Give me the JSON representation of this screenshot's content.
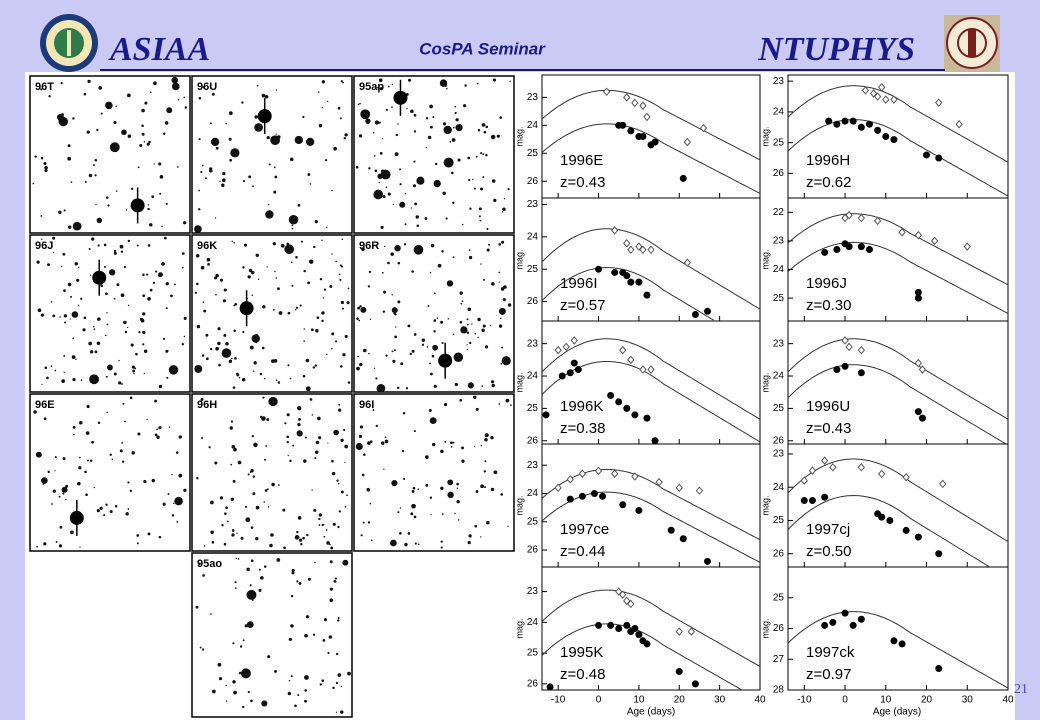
{
  "header": {
    "left_title": "ASIAA",
    "center_title": "CosPA Seminar",
    "right_title": "NTUPHYS"
  },
  "images": [
    {
      "label": "96T"
    },
    {
      "label": "96U"
    },
    {
      "label": "95ap"
    },
    {
      "label": "96J"
    },
    {
      "label": "96K"
    },
    {
      "label": "96R"
    },
    {
      "label": "96E"
    },
    {
      "label": "96H"
    },
    {
      "label": "96I"
    },
    {
      "label": "95ao"
    }
  ],
  "light_curves": {
    "x_label": "Age (days)",
    "y_label": "mag.",
    "xlim": [
      -14,
      40
    ],
    "xticks": [
      -10,
      0,
      10,
      20,
      30,
      40
    ],
    "panels": [
      {
        "name": "1996E",
        "redshift": "z=0.43",
        "ylim": [
          26.6,
          22.2
        ],
        "yticks": [
          23,
          24,
          25,
          26
        ],
        "open": [
          [
            2,
            22.8
          ],
          [
            7,
            23.0
          ],
          [
            9,
            23.2
          ],
          [
            11,
            23.3
          ],
          [
            12,
            23.7
          ],
          [
            22,
            24.6
          ],
          [
            26,
            24.1
          ]
        ],
        "filled": [
          [
            5,
            24.0
          ],
          [
            6,
            24.0
          ],
          [
            8,
            24.2
          ],
          [
            10,
            24.4
          ],
          [
            11,
            24.4
          ],
          [
            13,
            24.7
          ],
          [
            14,
            24.6
          ],
          [
            21,
            25.9
          ]
        ]
      },
      {
        "name": "1996H",
        "redshift": "z=0.62",
        "ylim": [
          26.8,
          22.8
        ],
        "yticks": [
          23,
          24,
          25,
          26
        ],
        "open": [
          [
            5,
            23.3
          ],
          [
            7,
            23.4
          ],
          [
            8,
            23.5
          ],
          [
            9,
            23.2
          ],
          [
            10,
            23.6
          ],
          [
            12,
            23.6
          ],
          [
            23,
            23.7
          ],
          [
            28,
            24.4
          ]
        ],
        "filled": [
          [
            -4,
            24.3
          ],
          [
            -2,
            24.4
          ],
          [
            0,
            24.3
          ],
          [
            2,
            24.3
          ],
          [
            4,
            24.5
          ],
          [
            6,
            24.4
          ],
          [
            8,
            24.6
          ],
          [
            10,
            24.8
          ],
          [
            12,
            24.9
          ],
          [
            20,
            25.4
          ],
          [
            23,
            25.5
          ]
        ]
      },
      {
        "name": "1996I",
        "redshift": "z=0.57",
        "ylim": [
          26.6,
          22.8
        ],
        "yticks": [
          23,
          24,
          25,
          26
        ],
        "open": [
          [
            4,
            23.8
          ],
          [
            7,
            24.2
          ],
          [
            8,
            24.4
          ],
          [
            10,
            24.3
          ],
          [
            11,
            24.4
          ],
          [
            13,
            24.4
          ],
          [
            22,
            24.8
          ]
        ],
        "filled": [
          [
            0,
            25.0
          ],
          [
            4,
            25.1
          ],
          [
            6,
            25.1
          ],
          [
            7,
            25.2
          ],
          [
            8,
            25.4
          ],
          [
            10,
            25.4
          ],
          [
            12,
            25.8
          ],
          [
            24,
            26.4
          ],
          [
            27,
            26.3
          ]
        ]
      },
      {
        "name": "1996J",
        "redshift": "z=0.30",
        "ylim": [
          25.8,
          21.5
        ],
        "yticks": [
          22,
          23,
          24,
          25
        ],
        "open": [
          [
            0,
            22.2
          ],
          [
            1,
            22.1
          ],
          [
            4,
            22.2
          ],
          [
            8,
            22.3
          ],
          [
            14,
            22.7
          ],
          [
            18,
            22.8
          ],
          [
            22,
            23.0
          ],
          [
            30,
            23.2
          ]
        ],
        "filled": [
          [
            -5,
            23.4
          ],
          [
            -2,
            23.3
          ],
          [
            0,
            23.1
          ],
          [
            1,
            23.2
          ],
          [
            4,
            23.2
          ],
          [
            6,
            23.3
          ],
          [
            18,
            24.8
          ],
          [
            18,
            25.0
          ]
        ]
      },
      {
        "name": "1996K",
        "redshift": "z=0.38",
        "ylim": [
          26.1,
          22.3
        ],
        "yticks": [
          23,
          24,
          25,
          26
        ],
        "open": [
          [
            -10,
            23.2
          ],
          [
            -8,
            23.1
          ],
          [
            -6,
            22.9
          ],
          [
            6,
            23.2
          ],
          [
            8,
            23.5
          ],
          [
            11,
            23.8
          ],
          [
            13,
            23.8
          ]
        ],
        "filled": [
          [
            -13,
            25.2
          ],
          [
            -9,
            24.0
          ],
          [
            -7,
            23.9
          ],
          [
            -6,
            23.6
          ],
          [
            -5,
            23.8
          ],
          [
            3,
            24.6
          ],
          [
            5,
            24.8
          ],
          [
            7,
            25.0
          ],
          [
            9,
            25.2
          ],
          [
            12,
            25.3
          ],
          [
            14,
            26.0
          ]
        ]
      },
      {
        "name": "1996U",
        "redshift": "z=0.43",
        "ylim": [
          26.1,
          22.3
        ],
        "yticks": [
          23,
          24,
          25,
          26
        ],
        "open": [
          [
            0,
            22.9
          ],
          [
            1,
            23.1
          ],
          [
            4,
            23.2
          ],
          [
            18,
            23.6
          ],
          [
            19,
            23.8
          ]
        ],
        "filled": [
          [
            -2,
            23.8
          ],
          [
            0,
            23.7
          ],
          [
            4,
            23.9
          ],
          [
            18,
            25.1
          ],
          [
            19,
            25.3
          ]
        ]
      },
      {
        "name": "1997ce",
        "redshift": "z=0.44",
        "ylim": [
          26.6,
          22.25
        ],
        "yticks": [
          23,
          24,
          25,
          26
        ],
        "open": [
          [
            -10,
            23.8
          ],
          [
            -7,
            23.5
          ],
          [
            -4,
            23.3
          ],
          [
            0,
            23.2
          ],
          [
            4,
            23.3
          ],
          [
            9,
            23.4
          ],
          [
            15,
            23.6
          ],
          [
            20,
            23.8
          ],
          [
            25,
            23.9
          ]
        ],
        "filled": [
          [
            -7,
            24.2
          ],
          [
            -4,
            24.1
          ],
          [
            -1,
            24.0
          ],
          [
            1,
            24.1
          ],
          [
            6,
            24.4
          ],
          [
            10,
            24.6
          ],
          [
            18,
            25.3
          ],
          [
            21,
            25.6
          ],
          [
            27,
            26.4
          ]
        ]
      },
      {
        "name": "1997cj",
        "redshift": "z=0.50",
        "ylim": [
          26.4,
          22.7
        ],
        "yticks": [
          23,
          24,
          25,
          26
        ],
        "open": [
          [
            -10,
            23.8
          ],
          [
            -8,
            23.5
          ],
          [
            -5,
            23.2
          ],
          [
            -3,
            23.4
          ],
          [
            4,
            23.4
          ],
          [
            9,
            23.6
          ],
          [
            15,
            23.7
          ],
          [
            24,
            23.9
          ]
        ],
        "filled": [
          [
            -10,
            24.4
          ],
          [
            -8,
            24.4
          ],
          [
            -5,
            24.3
          ],
          [
            8,
            24.8
          ],
          [
            9,
            24.9
          ],
          [
            11,
            25.0
          ],
          [
            15,
            25.3
          ],
          [
            18,
            25.5
          ],
          [
            23,
            26.0
          ]
        ]
      },
      {
        "name": "1995K",
        "redshift": "z=0.48",
        "ylim": [
          26.2,
          22.2
        ],
        "yticks": [
          23,
          24,
          25,
          26
        ],
        "open": [
          [
            5,
            23.0
          ],
          [
            6,
            23.1
          ],
          [
            7,
            23.3
          ],
          [
            8,
            23.4
          ],
          [
            20,
            24.3
          ],
          [
            23,
            24.3
          ]
        ],
        "filled": [
          [
            -12,
            26.1
          ],
          [
            0,
            24.1
          ],
          [
            3,
            24.1
          ],
          [
            5,
            24.2
          ],
          [
            7,
            24.1
          ],
          [
            8,
            24.3
          ],
          [
            9,
            24.2
          ],
          [
            10,
            24.4
          ],
          [
            11,
            24.6
          ],
          [
            12,
            24.7
          ],
          [
            20,
            25.6
          ],
          [
            24,
            26.0
          ]
        ]
      },
      {
        "name": "1997ck",
        "redshift": "z=0.97",
        "ylim": [
          28,
          24
        ],
        "yticks": [
          25,
          26,
          27,
          28
        ],
        "open": [],
        "filled": [
          [
            -5,
            25.9
          ],
          [
            -3,
            25.8
          ],
          [
            0,
            25.5
          ],
          [
            2,
            25.9
          ],
          [
            4,
            25.7
          ],
          [
            12,
            26.4
          ],
          [
            14,
            26.5
          ],
          [
            23,
            27.3
          ]
        ]
      }
    ]
  },
  "page_number": "21"
}
